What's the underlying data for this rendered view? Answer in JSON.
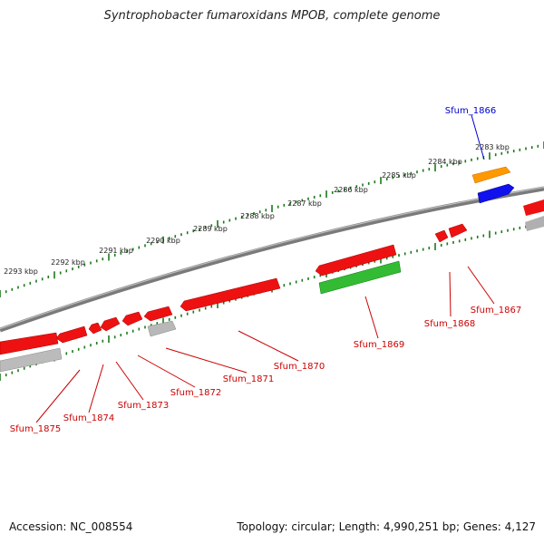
{
  "title": "Syntrophobacter fumaroxidans MPOB, complete genome",
  "footer": {
    "accession": "Accession: NC_008554",
    "info": "Topology: circular; Length: 4,990,251 bp; Genes: 4,127"
  },
  "scale": {
    "kbp_labels": [
      "2283 kbp",
      "2284 kbp",
      "2285 kbp",
      "2286 kbp",
      "2287 kbp",
      "2288 kbp",
      "2289 kbp",
      "2290 kbp",
      "2291 kbp",
      "2292 kbp",
      "2293 kbp"
    ]
  },
  "genes": [
    {
      "id": "Sfum_1866",
      "color": "#0000cc"
    },
    {
      "id": "Sfum_1867",
      "color": "#cc0000"
    },
    {
      "id": "Sfum_1868",
      "color": "#cc0000"
    },
    {
      "id": "Sfum_1869",
      "color": "#cc0000"
    },
    {
      "id": "Sfum_1870",
      "color": "#cc0000"
    },
    {
      "id": "Sfum_1871",
      "color": "#cc0000"
    },
    {
      "id": "Sfum_1872",
      "color": "#cc0000"
    },
    {
      "id": "Sfum_1873",
      "color": "#cc0000"
    },
    {
      "id": "Sfum_1874",
      "color": "#cc0000"
    },
    {
      "id": "Sfum_1875",
      "color": "#cc0000"
    }
  ],
  "colors": {
    "cds_red": "#ee1111",
    "rna_orange": "#ff9900",
    "gene_blue": "#1111ee",
    "green": "#33bb33",
    "gray": "#aaaaaa",
    "tick_green": "#1a7a1a",
    "backbone": "#888888"
  }
}
